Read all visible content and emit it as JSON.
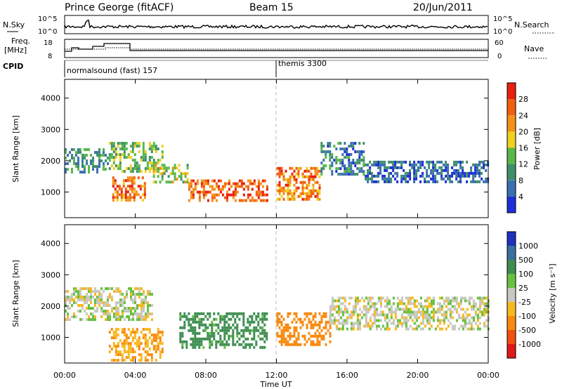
{
  "header": {
    "station": "Prince George (fitACF)",
    "beam": "Beam 15",
    "date": "20/Jun/2011"
  },
  "noise_panel": {
    "left_label": "N.Sky",
    "right_label": "N.Search",
    "left_ticks": [
      "10^5",
      "10^0"
    ],
    "right_ticks": [
      "10^5",
      "10^0"
    ]
  },
  "freq_panel": {
    "left_label_1": "Freq.",
    "left_label_2": "[MHz]",
    "left_ticks": [
      "18",
      "8"
    ],
    "right_label": "Nave",
    "right_ticks": [
      "60",
      "0"
    ]
  },
  "cpid": {
    "label": "CPID",
    "program_1": "normalsound (fast) 157",
    "program_2": "themis 3300"
  },
  "power_panel": {
    "ylabel": "Slant Range [km]",
    "yticks": [
      "1000",
      "2000",
      "3000",
      "4000"
    ],
    "colorbar_label": "Power [dB]",
    "colorbar_ticks": [
      "4",
      "8",
      "12",
      "16",
      "20",
      "24",
      "28"
    ],
    "colors": [
      "#1f2fd8",
      "#3a6fb0",
      "#3e8f6a",
      "#58b848",
      "#f0d020",
      "#f59018",
      "#f06010",
      "#e82010"
    ]
  },
  "velocity_panel": {
    "ylabel": "Slant Range [km]",
    "yticks": [
      "1000",
      "2000",
      "3000",
      "4000"
    ],
    "colorbar_label": "Velocity [m s⁻¹]",
    "colorbar_ticks": [
      "1000",
      "500",
      "100",
      "25",
      "-25",
      "-100",
      "-500",
      "-1000"
    ],
    "colors": [
      "#2030c0",
      "#3a70a0",
      "#3e8e50",
      "#68c040",
      "#c8c8c0",
      "#f8b820",
      "#f88a10",
      "#f05010",
      "#e01818"
    ]
  },
  "xaxis": {
    "ticks": [
      "00:00",
      "04:00",
      "08:00",
      "12:00",
      "16:00",
      "20:00",
      "00:00"
    ],
    "label": "Time UT"
  },
  "chart_data": {
    "type": "heatmap",
    "x_range_hours": [
      0,
      24
    ],
    "y_range_km": [
      180,
      4600
    ],
    "mode_change_time": "12:00",
    "power_bands": [
      {
        "t_start": 0.0,
        "t_end": 2.5,
        "range_km": [
          1600,
          2400
        ],
        "power_db": 10
      },
      {
        "t_start": 2.5,
        "t_end": 5.5,
        "range_km": [
          1700,
          2600
        ],
        "power_db": 14
      },
      {
        "t_start": 2.7,
        "t_end": 4.5,
        "range_km": [
          700,
          1500
        ],
        "power_db": 24
      },
      {
        "t_start": 5.0,
        "t_end": 7.0,
        "range_km": [
          1300,
          1900
        ],
        "power_db": 16
      },
      {
        "t_start": 7.0,
        "t_end": 11.5,
        "range_km": [
          700,
          1400
        ],
        "power_db": 26
      },
      {
        "t_start": 12.0,
        "t_end": 14.5,
        "range_km": [
          800,
          1800
        ],
        "power_db": 24
      },
      {
        "t_start": 14.5,
        "t_end": 17.0,
        "range_km": [
          1600,
          2600
        ],
        "power_db": 8
      },
      {
        "t_start": 17.0,
        "t_end": 24.0,
        "range_km": [
          1300,
          2000
        ],
        "power_db": 6
      }
    ],
    "velocity_bands": [
      {
        "t_start": 0.0,
        "t_end": 5.0,
        "range_km": [
          1600,
          2600
        ],
        "velocity_ms": 0
      },
      {
        "t_start": 2.5,
        "t_end": 5.5,
        "range_km": [
          300,
          1300
        ],
        "velocity_ms": -100
      },
      {
        "t_start": 6.5,
        "t_end": 11.5,
        "range_km": [
          700,
          1800
        ],
        "velocity_ms": 150
      },
      {
        "t_start": 12.0,
        "t_end": 15.0,
        "range_km": [
          800,
          1800
        ],
        "velocity_ms": -300
      },
      {
        "t_start": 15.0,
        "t_end": 24.0,
        "range_km": [
          1300,
          2300
        ],
        "velocity_ms": 0
      }
    ]
  }
}
